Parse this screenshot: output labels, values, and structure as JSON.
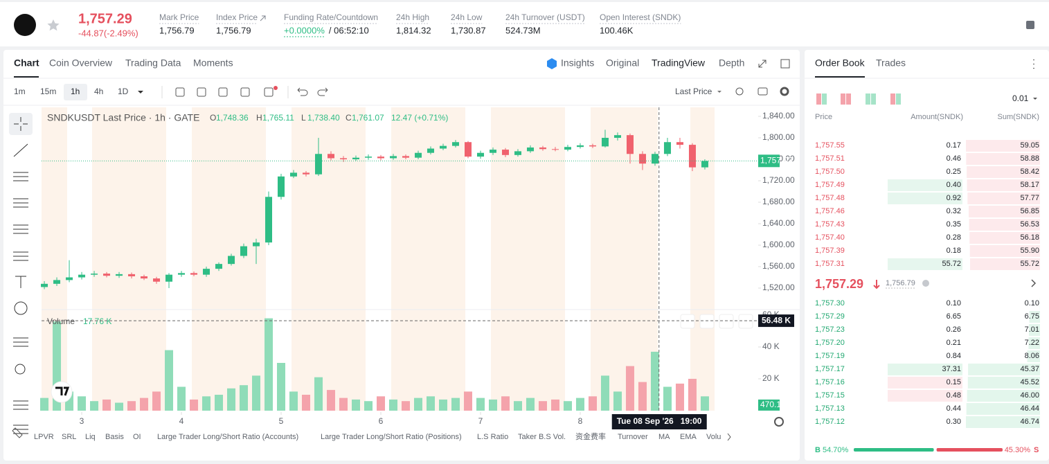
{
  "header": {
    "price": "1,757.29",
    "change": "-44.87(-2.49%)",
    "stats": [
      {
        "label": "Mark Price",
        "value": "1,756.79"
      },
      {
        "label": "Index Price",
        "value": "1,756.79"
      },
      {
        "label": "Funding Rate/Countdown",
        "value": "+0.0000%",
        "value2": "/ 06:52:10"
      },
      {
        "label": "24h High",
        "value": "1,814.32"
      },
      {
        "label": "24h Low",
        "value": "1,730.87"
      },
      {
        "label": "24h Turnover (USDT)",
        "value": "524.73M"
      },
      {
        "label": "Open Interest (SNDK)",
        "value": "100.46K"
      }
    ]
  },
  "tabs": [
    "Chart",
    "Coin Overview",
    "Trading Data",
    "Moments"
  ],
  "views": [
    "Insights",
    "Original",
    "TradingView",
    "Depth"
  ],
  "intervals": [
    "1m",
    "15m",
    "1h",
    "4h",
    "1D"
  ],
  "price_source": "Last Price",
  "legend": {
    "title": "SNDKUSDT Last Price · 1h · GATE",
    "ohlc": [
      {
        "label": "O",
        "value": "1,748.36"
      },
      {
        "label": "H",
        "value": "1,765.11"
      },
      {
        "label": "L",
        "value": "1,738.40"
      },
      {
        "label": "C",
        "value": "1,761.07"
      }
    ],
    "change": "12.47 (+0.71%)"
  },
  "chart_data": {
    "type": "candlestick",
    "t": [
      2.625,
      2.75,
      2.875,
      3,
      3.125,
      3.25,
      3.375,
      3.5,
      3.625,
      3.75,
      3.875,
      4,
      4.125,
      4.25,
      4.375,
      4.5,
      4.625,
      4.75,
      4.875,
      5,
      5.125,
      5.25,
      5.375,
      5.5,
      5.625,
      5.75,
      5.875,
      6,
      6.125,
      6.25,
      6.375,
      6.5,
      6.625,
      6.75,
      6.875,
      7,
      7.125,
      7.25,
      7.375,
      7.5,
      7.625,
      7.75,
      7.875,
      8,
      8.125,
      8.25,
      8.375,
      8.5,
      8.625,
      8.75,
      8.875,
      9,
      9.125,
      9.25
    ],
    "open": [
      1522,
      1528,
      1535,
      1540,
      1545,
      1547,
      1543,
      1546,
      1542,
      1538,
      1532,
      1545,
      1548,
      1545,
      1556,
      1565,
      1580,
      1598,
      1605,
      1690,
      1728,
      1735,
      1732,
      1770,
      1762,
      1760,
      1763,
      1765,
      1762,
      1766,
      1763,
      1772,
      1780,
      1785,
      1792,
      1765,
      1772,
      1778,
      1768,
      1775,
      1782,
      1779,
      1778,
      1783,
      1786,
      1784,
      1800,
      1805,
      1770,
      1752,
      1770,
      1792,
      1787,
      1745
    ],
    "high": [
      1533,
      1540,
      1572,
      1550,
      1552,
      1550,
      1550,
      1549,
      1545,
      1541,
      1548,
      1552,
      1551,
      1560,
      1568,
      1584,
      1603,
      1612,
      1700,
      1733,
      1740,
      1738,
      1800,
      1775,
      1766,
      1767,
      1769,
      1768,
      1770,
      1769,
      1776,
      1784,
      1789,
      1796,
      1794,
      1776,
      1782,
      1781,
      1779,
      1786,
      1785,
      1783,
      1787,
      1790,
      1789,
      1815,
      1810,
      1808,
      1775,
      1774,
      1800,
      1800,
      1790,
      1760
    ],
    "low": [
      1518,
      1524,
      1531,
      1536,
      1541,
      1540,
      1539,
      1538,
      1535,
      1528,
      1520,
      1541,
      1542,
      1541,
      1552,
      1562,
      1576,
      1565,
      1600,
      1685,
      1725,
      1728,
      1729,
      1758,
      1755,
      1757,
      1759,
      1758,
      1759,
      1760,
      1760,
      1769,
      1777,
      1782,
      1762,
      1761,
      1768,
      1764,
      1765,
      1772,
      1776,
      1775,
      1775,
      1780,
      1781,
      1782,
      1795,
      1752,
      1740,
      1748,
      1766,
      1780,
      1738,
      1741
    ],
    "close": [
      1528,
      1535,
      1540,
      1545,
      1547,
      1543,
      1546,
      1542,
      1538,
      1532,
      1545,
      1548,
      1545,
      1556,
      1565,
      1580,
      1598,
      1605,
      1690,
      1728,
      1735,
      1732,
      1770,
      1762,
      1760,
      1763,
      1765,
      1762,
      1766,
      1763,
      1772,
      1780,
      1785,
      1792,
      1765,
      1772,
      1778,
      1768,
      1775,
      1782,
      1779,
      1778,
      1783,
      1786,
      1784,
      1800,
      1805,
      1770,
      1752,
      1770,
      1792,
      1787,
      1745,
      1757
    ],
    "xlim": [
      2.597,
      9.785
    ],
    "xticks": [
      3,
      4,
      5,
      6,
      7,
      8
    ],
    "ylim": [
      1482.6,
      1856.8
    ],
    "yticks": [
      {
        "value": 1520,
        "label": "1,520.00"
      },
      {
        "value": 1560,
        "label": "1,560.00"
      },
      {
        "value": 1600,
        "label": "1,600.00"
      },
      {
        "value": 1640,
        "label": "1,640.00"
      },
      {
        "value": 1680,
        "label": "1,680.00"
      },
      {
        "value": 1720,
        "label": "1,720.00"
      },
      {
        "value": 1760,
        "label": "1,760.00"
      },
      {
        "value": 1800,
        "label": "1,800.00"
      },
      {
        "value": 1840,
        "label": "1,840.00"
      }
    ],
    "last_price": {
      "value": 1757.03,
      "label": "1,757.03"
    },
    "up_color": "#2ebd85",
    "down_color": "#f0616d"
  },
  "volume_chart": {
    "type": "bar",
    "title": "Volume",
    "current": "17.76 K",
    "values": [
      8000,
      56000,
      12000,
      9000,
      6000,
      7000,
      5000,
      6000,
      8000,
      12000,
      38000,
      15000,
      7000,
      9000,
      10000,
      14000,
      16000,
      22000,
      58000,
      30000,
      12000,
      10000,
      21000,
      13000,
      8000,
      7000,
      6000,
      9000,
      7000,
      6000,
      8000,
      9000,
      7000,
      8000,
      12000,
      8000,
      7000,
      9000,
      6000,
      8000,
      6000,
      7000,
      6000,
      8000,
      9000,
      22000,
      12000,
      28000,
      18000,
      37000,
      15000,
      17000,
      20000,
      9000
    ],
    "ylim": [
      0,
      60000
    ],
    "yticks": [
      {
        "value": 20000,
        "label": "20 K"
      },
      {
        "value": 40000,
        "label": "40 K"
      },
      {
        "value": 60000,
        "label": "60 K"
      }
    ],
    "last": {
      "value": 470.15,
      "label": "470.15"
    },
    "up_color": "#8fdcb8",
    "down_color": "#f4a3ab"
  },
  "crosshair": {
    "x": 8.79,
    "x_label": "Tue 08 Sep '26",
    "x_label_time": "19:00",
    "y": {
      "value": 56480,
      "label": "56.48 K"
    }
  },
  "indicators": [
    "LPVR",
    "SRL",
    "Liq",
    "Basis",
    "OI",
    "Large Trader Long/Short Ratio (Accounts)",
    "Large Trader Long/Short Ratio (Positions)",
    "L.S Ratio",
    "Taker B.S Vol.",
    "资金费率",
    "Turnover",
    "MA",
    "EMA",
    "Volu"
  ],
  "order_book": {
    "tabs": [
      "Order Book",
      "Trades"
    ],
    "precision": "0.01",
    "columns": [
      "Price",
      "Amount(SNDK)",
      "Sum(SNDK)"
    ],
    "asks": [
      [
        "1,757.55",
        "0.17",
        "59.05"
      ],
      [
        "1,757.51",
        "0.46",
        "58.88"
      ],
      [
        "1,757.50",
        "0.25",
        "58.42"
      ],
      [
        "1,757.49",
        "0.40",
        "58.17"
      ],
      [
        "1,757.48",
        "0.92",
        "57.77"
      ],
      [
        "1,757.46",
        "0.32",
        "56.85"
      ],
      [
        "1,757.43",
        "0.35",
        "56.53"
      ],
      [
        "1,757.40",
        "0.28",
        "56.18"
      ],
      [
        "1,757.39",
        "0.18",
        "55.90"
      ],
      [
        "1,757.31",
        "55.72",
        "55.72"
      ]
    ],
    "last_price": "1,757.29",
    "mark_price": "1,756.79",
    "bids": [
      [
        "1,757.30",
        "0.10",
        "0.10"
      ],
      [
        "1,757.29",
        "6.65",
        "6.75"
      ],
      [
        "1,757.23",
        "0.26",
        "7.01"
      ],
      [
        "1,757.20",
        "0.21",
        "7.22"
      ],
      [
        "1,757.19",
        "0.84",
        "8.06"
      ],
      [
        "1,757.17",
        "37.31",
        "45.37"
      ],
      [
        "1,757.16",
        "0.15",
        "45.52"
      ],
      [
        "1,757.15",
        "0.48",
        "46.00"
      ],
      [
        "1,757.13",
        "0.44",
        "46.44"
      ],
      [
        "1,757.12",
        "0.30",
        "46.74"
      ]
    ],
    "buy_label": "B",
    "buy_ratio": {
      "value": 54.7,
      "label": "54.70%"
    },
    "sell_ratio": {
      "value": 45.3,
      "label": "45.30%"
    },
    "sell_label": "S"
  }
}
